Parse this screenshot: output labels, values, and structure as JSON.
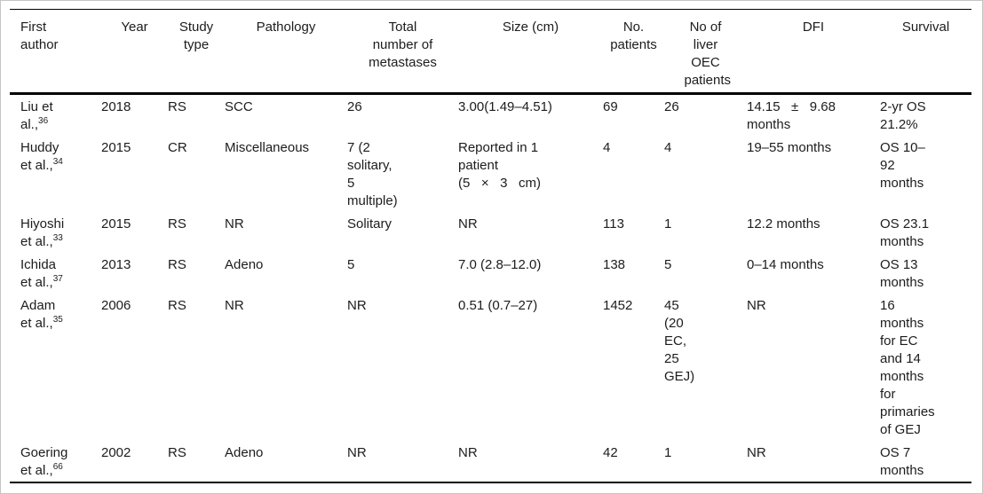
{
  "table": {
    "columns": [
      {
        "key": "author",
        "label": "First author"
      },
      {
        "key": "year",
        "label": "Year"
      },
      {
        "key": "study_type",
        "label": "Study type"
      },
      {
        "key": "pathology",
        "label": "Pathology"
      },
      {
        "key": "total_metastases",
        "label": "Total number of metastases"
      },
      {
        "key": "size_cm",
        "label": "Size (cm)"
      },
      {
        "key": "no_patients",
        "label": "No. patients"
      },
      {
        "key": "no_liver_oec",
        "label": "No of liver OEC patients"
      },
      {
        "key": "dfi",
        "label": "DFI"
      },
      {
        "key": "survival",
        "label": "Survival"
      }
    ],
    "rows": [
      {
        "author": {
          "text": "Liu et al.,",
          "ref": "36"
        },
        "year": "2018",
        "study_type": "RS",
        "pathology": "SCC",
        "total_metastases": "26",
        "size_cm": "3.00(1.49–4.51)",
        "no_patients": "69",
        "no_liver_oec": "26",
        "dfi": "14.15   ±   9.68 months",
        "survival": "2-yr OS 21.2%"
      },
      {
        "author": {
          "text": "Huddy et al.,",
          "ref": "34"
        },
        "year": "2015",
        "study_type": "CR",
        "pathology": "Miscellaneous",
        "total_metastases": "7 (2 solitary, 5 multiple)",
        "size_cm": "Reported in 1 patient\n(5   ×   3   cm)",
        "no_patients": "4",
        "no_liver_oec": "4",
        "dfi": "19–55 months",
        "survival": "OS 10–92 months"
      },
      {
        "author": {
          "text": "Hiyoshi et al.,",
          "ref": "33"
        },
        "year": "2015",
        "study_type": "RS",
        "pathology": "NR",
        "total_metastases": "Solitary",
        "size_cm": "NR",
        "no_patients": "113",
        "no_liver_oec": "1",
        "dfi": "12.2 months",
        "survival": "OS 23.1 months"
      },
      {
        "author": {
          "text": "Ichida et al.,",
          "ref": "37"
        },
        "year": "2013",
        "study_type": "RS",
        "pathology": "Adeno",
        "total_metastases": "5",
        "size_cm": "7.0 (2.8–12.0)",
        "no_patients": "138",
        "no_liver_oec": "5",
        "dfi": "0–14 months",
        "survival": "OS 13 months"
      },
      {
        "author": {
          "text": "Adam et al.,",
          "ref": "35"
        },
        "year": "2006",
        "study_type": "RS",
        "pathology": "NR",
        "total_metastases": "NR",
        "size_cm": "0.51 (0.7–27)",
        "no_patients": "1452",
        "no_liver_oec": "45 (20 EC, 25 GEJ)",
        "dfi": "NR",
        "survival": "16 months for EC and 14 months for primaries of GEJ"
      },
      {
        "author": {
          "text": "Goering et al.,",
          "ref": "66"
        },
        "year": "2002",
        "study_type": "RS",
        "pathology": "Adeno",
        "total_metastases": "NR",
        "size_cm": "NR",
        "no_patients": "42",
        "no_liver_oec": "1",
        "dfi": "NR",
        "survival": "OS 7 months"
      }
    ]
  }
}
